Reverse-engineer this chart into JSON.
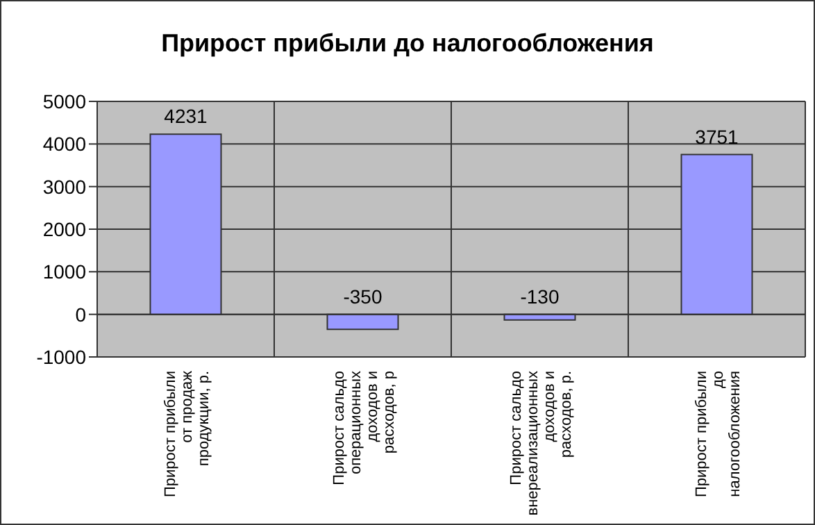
{
  "chart_data": {
    "type": "bar",
    "title": "Прирост прибыли до налогообложения",
    "categories": [
      "Прирост прибыли от продаж продукции, р.",
      "Прирост сальдо операционных доходов и расходов, р",
      "Прирост сальдо внереализационных доходов и расходов, р.",
      "Прирост прибыли до налогообложения"
    ],
    "values": [
      4231,
      -350,
      -130,
      3751
    ],
    "color": "#9999ff",
    "ylim": [
      -1000,
      5000
    ],
    "yticks": [
      -1000,
      0,
      1000,
      2000,
      3000,
      4000,
      5000
    ],
    "grid": true,
    "data_labels": true
  }
}
